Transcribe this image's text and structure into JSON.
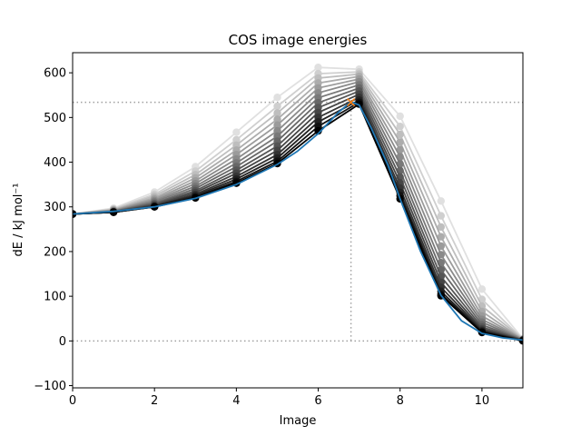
{
  "chart_data": {
    "type": "line",
    "title": "COS image energies",
    "xlabel": "Image",
    "ylabel": "dE / kJ mol⁻¹",
    "xlim": [
      0,
      11
    ],
    "ylim": [
      -105,
      645
    ],
    "xticks": [
      0,
      2,
      4,
      6,
      8,
      10
    ],
    "yticks": [
      -100,
      0,
      100,
      200,
      300,
      400,
      500,
      600
    ],
    "grid": false,
    "legend": "none",
    "x": [
      0,
      1,
      2,
      3,
      4,
      5,
      6,
      7,
      8,
      9,
      10,
      11
    ],
    "iterations": [
      [
        284,
        297,
        333,
        390,
        467,
        545,
        612,
        608,
        503,
        313,
        116,
        5
      ],
      [
        284,
        295,
        328,
        380,
        450,
        525,
        598,
        602,
        480,
        280,
        93,
        4
      ],
      [
        284,
        294,
        324,
        372,
        438,
        510,
        588,
        597,
        462,
        255,
        78,
        4
      ],
      [
        284,
        293,
        320,
        365,
        427,
        496,
        577,
        592,
        445,
        233,
        66,
        3
      ],
      [
        284,
        292,
        317,
        358,
        417,
        483,
        566,
        586,
        428,
        212,
        56,
        3
      ],
      [
        284,
        291,
        314,
        352,
        407,
        470,
        555,
        580,
        412,
        193,
        48,
        3
      ],
      [
        284,
        290,
        311,
        346,
        398,
        458,
        544,
        573,
        396,
        175,
        42,
        2
      ],
      [
        284,
        290,
        308,
        341,
        390,
        447,
        533,
        566,
        381,
        159,
        36,
        2
      ],
      [
        284,
        289,
        306,
        336,
        382,
        436,
        522,
        559,
        367,
        144,
        31,
        2
      ],
      [
        284,
        289,
        304,
        332,
        375,
        426,
        511,
        552,
        354,
        131,
        27,
        2
      ],
      [
        284,
        288,
        302,
        328,
        368,
        417,
        500,
        545,
        342,
        120,
        24,
        1
      ],
      [
        284,
        288,
        301,
        325,
        362,
        409,
        490,
        539,
        332,
        111,
        22,
        1
      ],
      [
        284,
        288,
        300,
        322,
        357,
        402,
        480,
        534,
        325,
        105,
        20,
        1
      ],
      [
        284,
        288,
        300,
        320,
        353,
        397,
        470,
        530,
        318,
        101,
        19,
        0
      ]
    ],
    "spline": {
      "color": "#1f77b4",
      "x": [
        0,
        1,
        2,
        3,
        4,
        5,
        5.5,
        6,
        6.5,
        6.8,
        7,
        7.3,
        7.7,
        8,
        8.5,
        9,
        9.5,
        10,
        10.5,
        11
      ],
      "values": [
        284,
        290,
        300,
        319,
        350,
        395,
        425,
        464,
        512,
        535,
        528,
        475,
        394,
        318,
        200,
        102,
        45,
        17,
        7,
        2
      ]
    },
    "ts_marker": {
      "x": 6.8,
      "y": 534,
      "color": "#ff7f0e"
    },
    "reference_lines": {
      "horizontal": [
        0,
        534
      ],
      "vertical": 6.8,
      "color": "#a0a0a0"
    }
  }
}
